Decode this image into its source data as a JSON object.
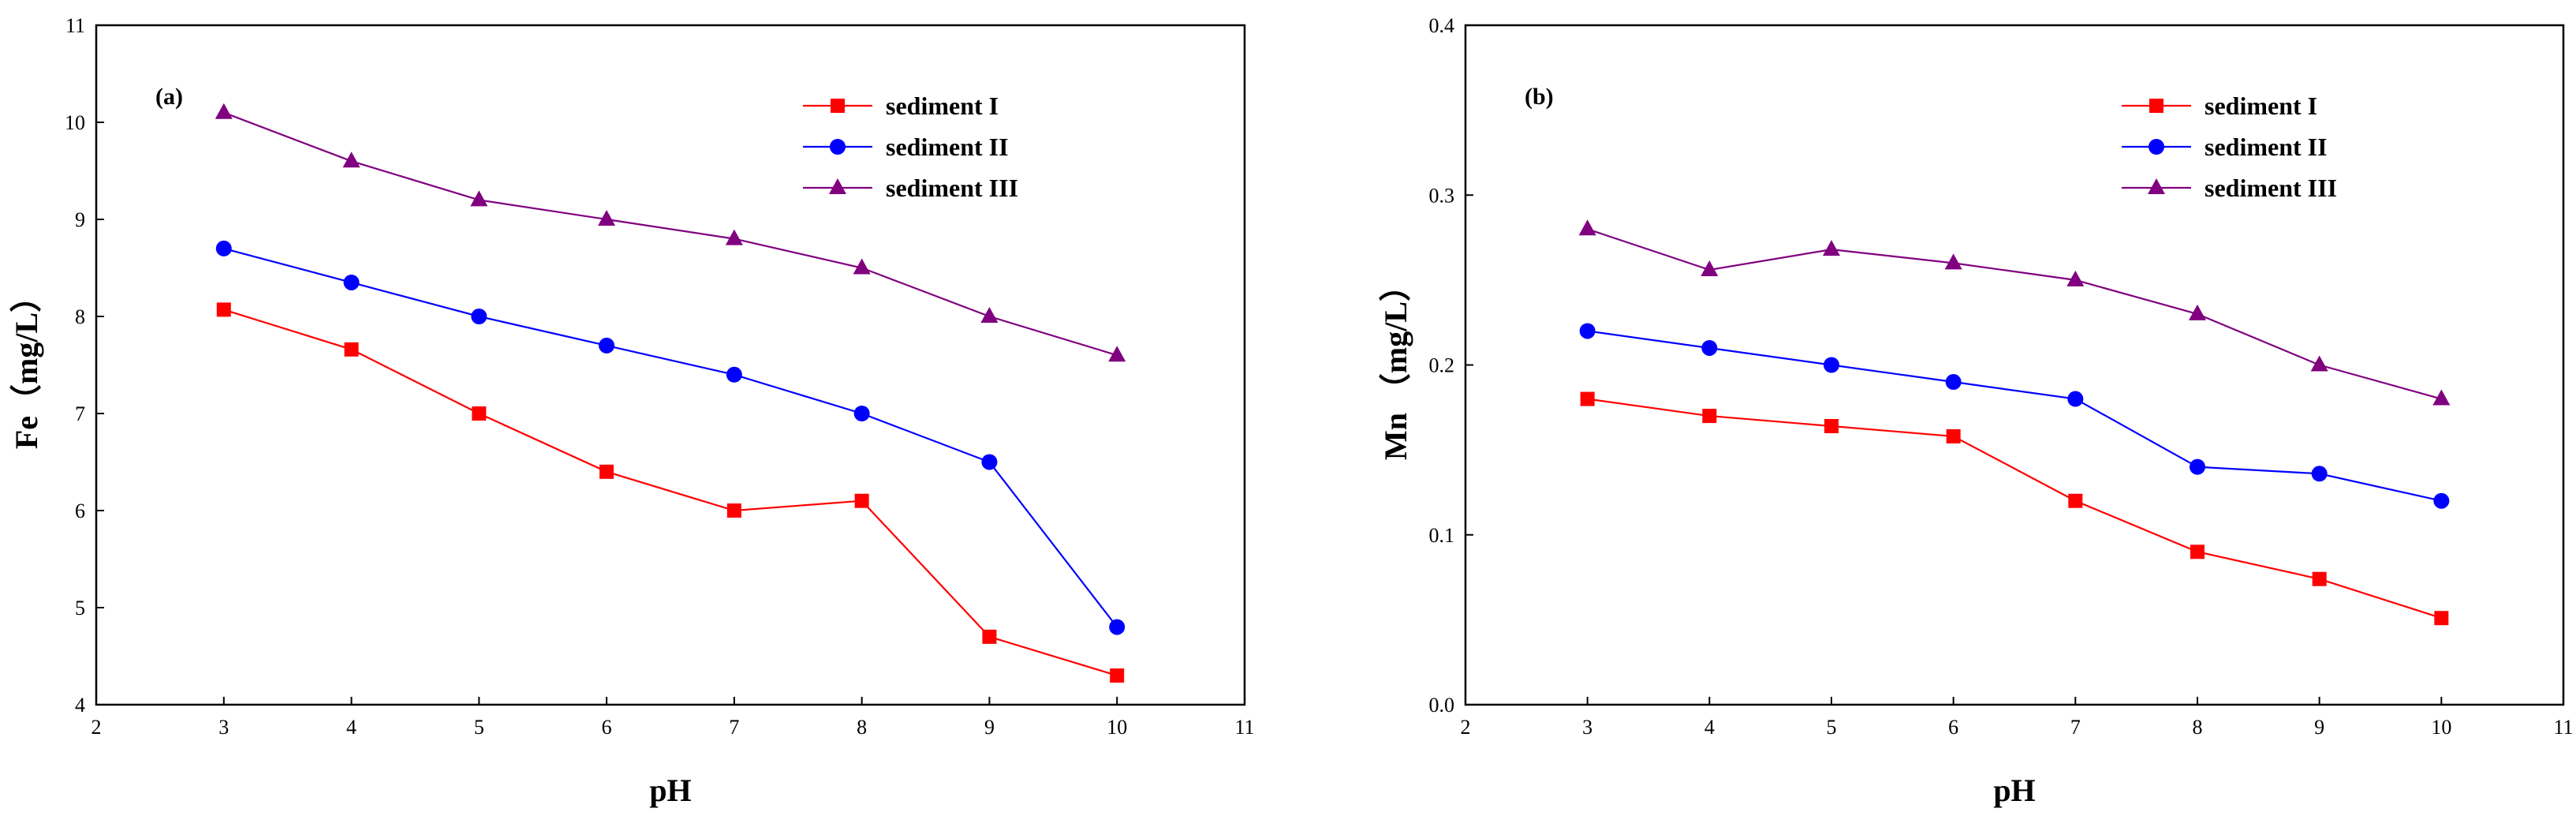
{
  "chart_data": [
    {
      "type": "line",
      "panel_label": "(a)",
      "xlabel": "pH",
      "ylabel": "Fe（mg/L）",
      "xlim": [
        2,
        11
      ],
      "ylim": [
        4,
        11
      ],
      "xticks": [
        2,
        3,
        4,
        5,
        6,
        7,
        8,
        9,
        10,
        11
      ],
      "yticks": [
        4,
        5,
        6,
        7,
        8,
        9,
        10,
        11
      ],
      "ytick_labels": [
        "4",
        "5",
        "6",
        "7",
        "8",
        "9",
        "10",
        "11"
      ],
      "legend_position": "top-right",
      "x": [
        3,
        4,
        5,
        6,
        7,
        8,
        9,
        10
      ],
      "series": [
        {
          "name": "sediment I",
          "color": "#ff0000",
          "marker": "square",
          "values": [
            8.07,
            7.66,
            7.0,
            6.4,
            6.0,
            6.1,
            4.7,
            4.3
          ]
        },
        {
          "name": "sediment II",
          "color": "#0000ff",
          "marker": "circle",
          "values": [
            8.7,
            8.35,
            8.0,
            7.7,
            7.4,
            7.0,
            6.5,
            4.8
          ]
        },
        {
          "name": "sediment III",
          "color": "#800080",
          "marker": "triangle",
          "values": [
            10.1,
            9.6,
            9.2,
            9.0,
            8.8,
            8.5,
            8.0,
            7.6
          ]
        }
      ]
    },
    {
      "type": "line",
      "panel_label": "(b)",
      "xlabel": "pH",
      "ylabel": "Mn （mg/L）",
      "xlim": [
        2,
        11
      ],
      "ylim": [
        0,
        0.4
      ],
      "xticks": [
        2,
        3,
        4,
        5,
        6,
        7,
        8,
        9,
        10,
        11
      ],
      "yticks": [
        0,
        0.1,
        0.2,
        0.3,
        0.4
      ],
      "ytick_labels": [
        "0.0",
        "0.1",
        "0.2",
        "0.3",
        "0.4"
      ],
      "legend_position": "top-right",
      "x": [
        3,
        4,
        5,
        6,
        7,
        8,
        9,
        10
      ],
      "series": [
        {
          "name": "sediment I",
          "color": "#ff0000",
          "marker": "square",
          "values": [
            0.18,
            0.17,
            0.164,
            0.158,
            0.12,
            0.09,
            0.074,
            0.051
          ]
        },
        {
          "name": "sediment II",
          "color": "#0000ff",
          "marker": "circle",
          "values": [
            0.22,
            0.21,
            0.2,
            0.19,
            0.18,
            0.14,
            0.136,
            0.12
          ]
        },
        {
          "name": "sediment III",
          "color": "#800080",
          "marker": "triangle",
          "values": [
            0.28,
            0.256,
            0.268,
            0.26,
            0.25,
            0.23,
            0.2,
            0.18
          ]
        }
      ]
    }
  ]
}
